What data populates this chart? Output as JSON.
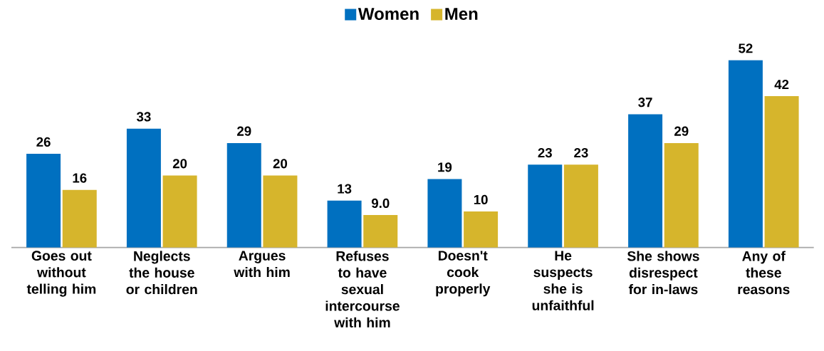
{
  "chart_data": {
    "type": "bar",
    "categories": [
      "Goes out without telling him",
      "Neglects the house or children",
      "Argues with him",
      "Refuses to have sexual intercourse with him",
      "Doesn't cook properly",
      "He suspects she is unfaithful",
      "She shows disrespect for in-laws",
      "Any of these reasons"
    ],
    "series": [
      {
        "name": "Women",
        "color": "#0070c0",
        "values": [
          26,
          33,
          29,
          13,
          19,
          23,
          37,
          52
        ],
        "value_labels": [
          "26",
          "33",
          "29",
          "13",
          "19",
          "23",
          "37",
          "52"
        ]
      },
      {
        "name": "Men",
        "color": "#d6b52c",
        "values": [
          16,
          20,
          20,
          9.0,
          10,
          23,
          29,
          42
        ],
        "value_labels": [
          "16",
          "20",
          "20",
          "9.0",
          "10",
          "23",
          "29",
          "42"
        ]
      }
    ],
    "legend": "top"
  }
}
